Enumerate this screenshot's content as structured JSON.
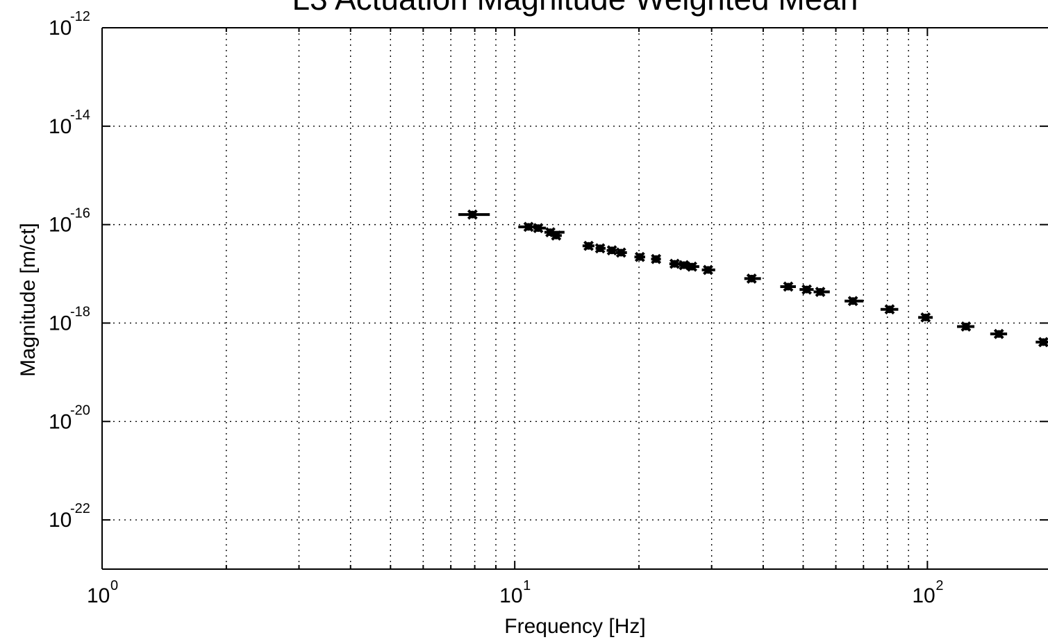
{
  "chart_data": {
    "type": "scatter",
    "title": "L3 Actuation Magnitude Weighted Mean",
    "xlabel": "Frequency [Hz]",
    "ylabel": "Magnitude [m/ct]",
    "xscale": "log",
    "yscale": "log",
    "xlim": [
      1,
      196
    ],
    "ylim": [
      1e-23,
      1e-12
    ],
    "grid": true,
    "x_ticks": [
      {
        "base": "10",
        "exp": "0",
        "value": 1
      },
      {
        "base": "10",
        "exp": "1",
        "value": 10
      },
      {
        "base": "10",
        "exp": "2",
        "value": 100
      }
    ],
    "y_ticks": [
      {
        "base": "10",
        "exp": "-12",
        "value": 1e-12
      },
      {
        "base": "10",
        "exp": "-14",
        "value": 1e-14
      },
      {
        "base": "10",
        "exp": "-16",
        "value": 1e-16
      },
      {
        "base": "10",
        "exp": "-18",
        "value": 1e-18
      },
      {
        "base": "10",
        "exp": "-20",
        "value": 1e-20
      },
      {
        "base": "10",
        "exp": "-22",
        "value": 1e-22
      }
    ],
    "x_minor_grid": [
      2,
      3,
      4,
      5,
      6,
      7,
      8,
      9,
      20,
      30,
      40,
      50,
      60,
      70,
      80,
      90
    ],
    "series": [
      {
        "marker": "x",
        "color": "#000000",
        "x": [
          7.9,
          10.8,
          11.4,
          12.2,
          12.6,
          15.1,
          16.1,
          17.2,
          18.1,
          20.1,
          22.0,
          24.4,
          25.7,
          26.9,
          29.4,
          37.5,
          46.0,
          51.0,
          55.0,
          66.0,
          81.0,
          99.0,
          124.0,
          149.0,
          191.0
        ],
        "y": [
          1.6e-16,
          9e-17,
          8.5e-17,
          7e-17,
          6e-17,
          3.7e-17,
          3.3e-17,
          3e-17,
          2.7e-17,
          2.2e-17,
          2e-17,
          1.6e-17,
          1.5e-17,
          1.4e-17,
          1.2e-17,
          8e-18,
          5.5e-18,
          4.8e-18,
          4.3e-18,
          2.8e-18,
          1.9e-18,
          1.3e-18,
          8.5e-19,
          6e-19,
          4.1e-19
        ],
        "xlo": [
          7.3,
          10.2,
          11.1,
          11.8,
          12.2,
          14.6,
          15.7,
          16.7,
          17.6,
          19.5,
          21.4,
          23.7,
          25.0,
          26.1,
          28.4,
          36.0,
          44.0,
          49.0,
          53.0,
          63.0,
          77.0,
          95.0,
          118.0,
          142.0,
          183.0
        ],
        "xhi": [
          8.7,
          11.3,
          11.9,
          13.2,
          13.0,
          15.6,
          16.6,
          17.7,
          18.7,
          20.7,
          22.6,
          25.2,
          26.4,
          28.0,
          30.6,
          39.5,
          48.0,
          53.0,
          58.0,
          70.0,
          85.0,
          103.0,
          130.0,
          156.0,
          200.0
        ]
      }
    ]
  }
}
